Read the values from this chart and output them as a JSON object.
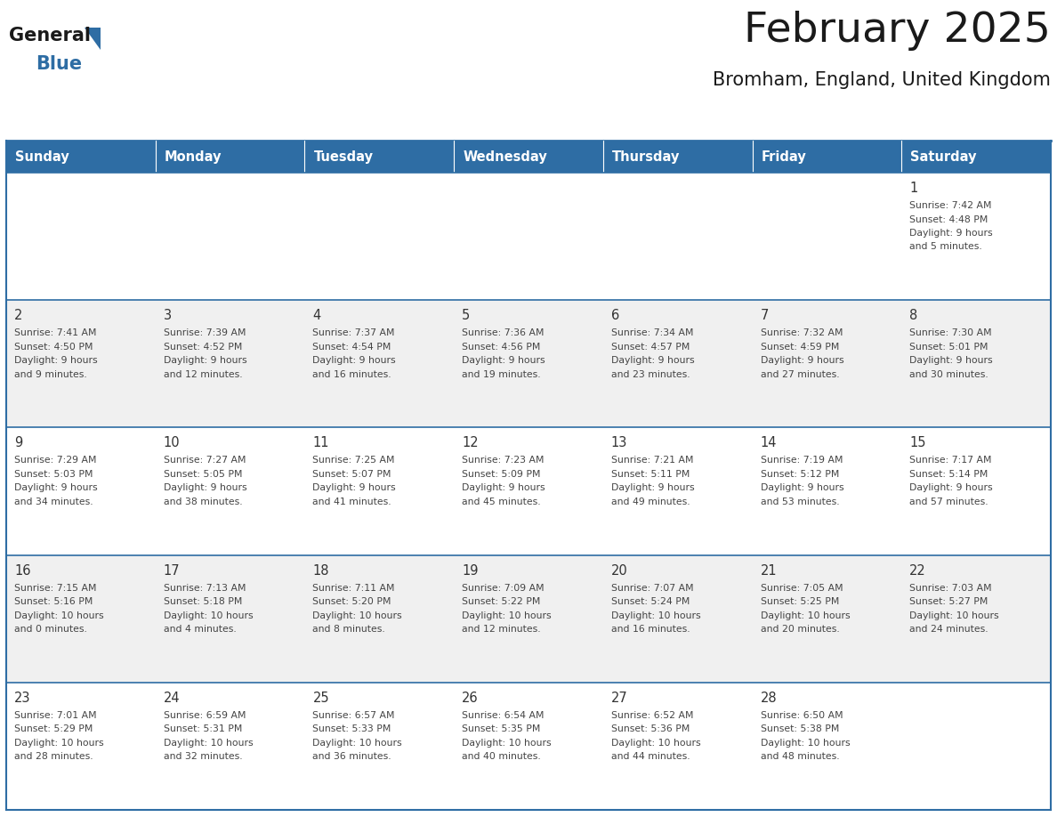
{
  "title": "February 2025",
  "subtitle": "Bromham, England, United Kingdom",
  "days_of_week": [
    "Sunday",
    "Monday",
    "Tuesday",
    "Wednesday",
    "Thursday",
    "Friday",
    "Saturday"
  ],
  "header_bg": "#2E6DA4",
  "header_text": "#FFFFFF",
  "cell_bg": "#FFFFFF",
  "cell_bg_alt": "#F0F0F0",
  "border_color": "#2E6DA4",
  "text_color": "#444444",
  "day_number_color": "#333333",
  "title_color": "#1a1a1a",
  "logo_general_color": "#1a1a1a",
  "logo_blue_color": "#2E6DA4",
  "logo_triangle_color": "#2E6DA4",
  "calendar_data": [
    [
      null,
      null,
      null,
      null,
      null,
      null,
      {
        "day": 1,
        "sunrise": "7:42 AM",
        "sunset": "4:48 PM",
        "daylight": "9 hours",
        "daylight2": "and 5 minutes."
      }
    ],
    [
      {
        "day": 2,
        "sunrise": "7:41 AM",
        "sunset": "4:50 PM",
        "daylight": "9 hours",
        "daylight2": "and 9 minutes."
      },
      {
        "day": 3,
        "sunrise": "7:39 AM",
        "sunset": "4:52 PM",
        "daylight": "9 hours",
        "daylight2": "and 12 minutes."
      },
      {
        "day": 4,
        "sunrise": "7:37 AM",
        "sunset": "4:54 PM",
        "daylight": "9 hours",
        "daylight2": "and 16 minutes."
      },
      {
        "day": 5,
        "sunrise": "7:36 AM",
        "sunset": "4:56 PM",
        "daylight": "9 hours",
        "daylight2": "and 19 minutes."
      },
      {
        "day": 6,
        "sunrise": "7:34 AM",
        "sunset": "4:57 PM",
        "daylight": "9 hours",
        "daylight2": "and 23 minutes."
      },
      {
        "day": 7,
        "sunrise": "7:32 AM",
        "sunset": "4:59 PM",
        "daylight": "9 hours",
        "daylight2": "and 27 minutes."
      },
      {
        "day": 8,
        "sunrise": "7:30 AM",
        "sunset": "5:01 PM",
        "daylight": "9 hours",
        "daylight2": "and 30 minutes."
      }
    ],
    [
      {
        "day": 9,
        "sunrise": "7:29 AM",
        "sunset": "5:03 PM",
        "daylight": "9 hours",
        "daylight2": "and 34 minutes."
      },
      {
        "day": 10,
        "sunrise": "7:27 AM",
        "sunset": "5:05 PM",
        "daylight": "9 hours",
        "daylight2": "and 38 minutes."
      },
      {
        "day": 11,
        "sunrise": "7:25 AM",
        "sunset": "5:07 PM",
        "daylight": "9 hours",
        "daylight2": "and 41 minutes."
      },
      {
        "day": 12,
        "sunrise": "7:23 AM",
        "sunset": "5:09 PM",
        "daylight": "9 hours",
        "daylight2": "and 45 minutes."
      },
      {
        "day": 13,
        "sunrise": "7:21 AM",
        "sunset": "5:11 PM",
        "daylight": "9 hours",
        "daylight2": "and 49 minutes."
      },
      {
        "day": 14,
        "sunrise": "7:19 AM",
        "sunset": "5:12 PM",
        "daylight": "9 hours",
        "daylight2": "and 53 minutes."
      },
      {
        "day": 15,
        "sunrise": "7:17 AM",
        "sunset": "5:14 PM",
        "daylight": "9 hours",
        "daylight2": "and 57 minutes."
      }
    ],
    [
      {
        "day": 16,
        "sunrise": "7:15 AM",
        "sunset": "5:16 PM",
        "daylight": "10 hours",
        "daylight2": "and 0 minutes."
      },
      {
        "day": 17,
        "sunrise": "7:13 AM",
        "sunset": "5:18 PM",
        "daylight": "10 hours",
        "daylight2": "and 4 minutes."
      },
      {
        "day": 18,
        "sunrise": "7:11 AM",
        "sunset": "5:20 PM",
        "daylight": "10 hours",
        "daylight2": "and 8 minutes."
      },
      {
        "day": 19,
        "sunrise": "7:09 AM",
        "sunset": "5:22 PM",
        "daylight": "10 hours",
        "daylight2": "and 12 minutes."
      },
      {
        "day": 20,
        "sunrise": "7:07 AM",
        "sunset": "5:24 PM",
        "daylight": "10 hours",
        "daylight2": "and 16 minutes."
      },
      {
        "day": 21,
        "sunrise": "7:05 AM",
        "sunset": "5:25 PM",
        "daylight": "10 hours",
        "daylight2": "and 20 minutes."
      },
      {
        "day": 22,
        "sunrise": "7:03 AM",
        "sunset": "5:27 PM",
        "daylight": "10 hours",
        "daylight2": "and 24 minutes."
      }
    ],
    [
      {
        "day": 23,
        "sunrise": "7:01 AM",
        "sunset": "5:29 PM",
        "daylight": "10 hours",
        "daylight2": "and 28 minutes."
      },
      {
        "day": 24,
        "sunrise": "6:59 AM",
        "sunset": "5:31 PM",
        "daylight": "10 hours",
        "daylight2": "and 32 minutes."
      },
      {
        "day": 25,
        "sunrise": "6:57 AM",
        "sunset": "5:33 PM",
        "daylight": "10 hours",
        "daylight2": "and 36 minutes."
      },
      {
        "day": 26,
        "sunrise": "6:54 AM",
        "sunset": "5:35 PM",
        "daylight": "10 hours",
        "daylight2": "and 40 minutes."
      },
      {
        "day": 27,
        "sunrise": "6:52 AM",
        "sunset": "5:36 PM",
        "daylight": "10 hours",
        "daylight2": "and 44 minutes."
      },
      {
        "day": 28,
        "sunrise": "6:50 AM",
        "sunset": "5:38 PM",
        "daylight": "10 hours",
        "daylight2": "and 48 minutes."
      },
      null
    ]
  ]
}
